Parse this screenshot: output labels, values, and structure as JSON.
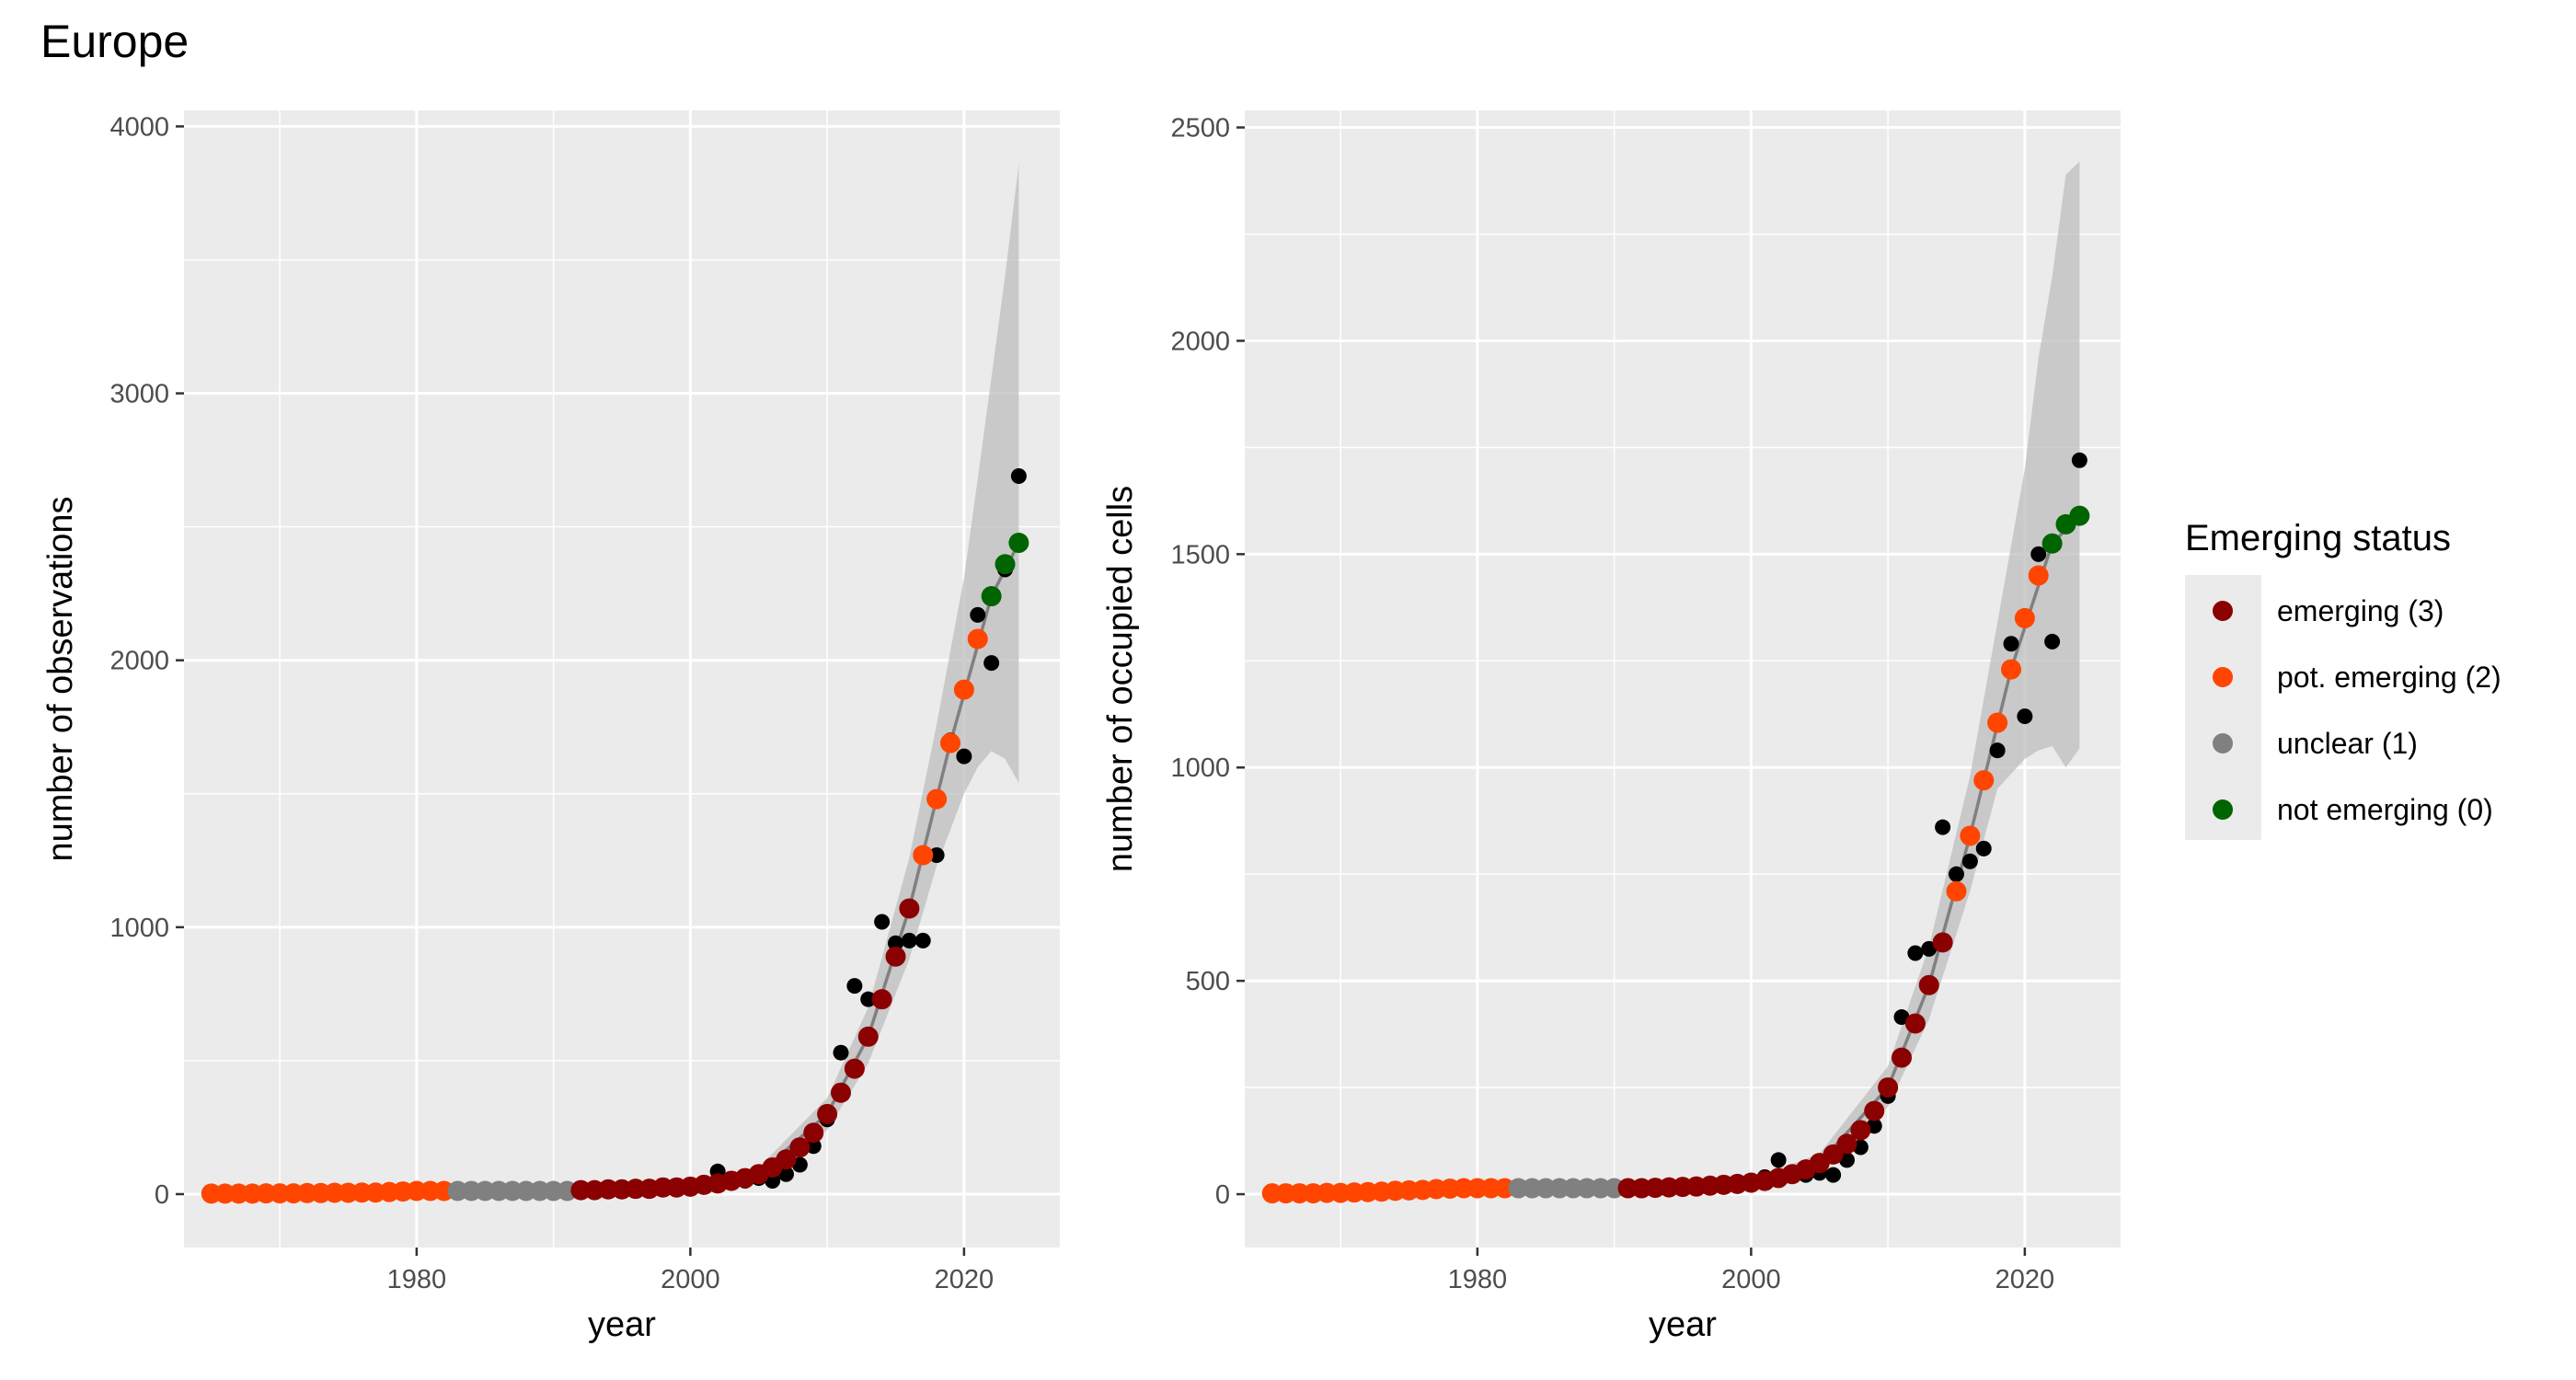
{
  "figure_title": "Europe",
  "legend": {
    "title": "Emerging status",
    "items": [
      {
        "label": "emerging (3)",
        "color": "#8B0000"
      },
      {
        "label": "pot. emerging (2)",
        "color": "#FF4500"
      },
      {
        "label": "unclear (1)",
        "color": "#808080"
      },
      {
        "label": "not emerging (0)",
        "color": "#006400"
      }
    ]
  },
  "chart_data": [
    {
      "type": "scatter",
      "title": "",
      "xlabel": "year",
      "ylabel": "number of observations",
      "xlim": [
        1963,
        2027
      ],
      "ylim": [
        -200,
        4060
      ],
      "x_ticks": [
        1980,
        2000,
        2020
      ],
      "y_ticks": [
        0,
        1000,
        2000,
        3000,
        4000
      ],
      "grid": true,
      "colors": {
        "observed": "#000000",
        "trend": "#808080",
        "ribbon": "#BEBEBE"
      },
      "observed": {
        "x": [
          1965,
          1966,
          1967,
          1968,
          1969,
          1970,
          1971,
          1972,
          1973,
          1974,
          1975,
          1976,
          1977,
          1978,
          1979,
          1980,
          1981,
          1982,
          1983,
          1984,
          1985,
          1986,
          1987,
          1988,
          1989,
          1990,
          1991,
          1992,
          1993,
          1994,
          1995,
          1996,
          1997,
          1998,
          1999,
          2000,
          2001,
          2002,
          2003,
          2004,
          2005,
          2006,
          2007,
          2008,
          2009,
          2010,
          2011,
          2012,
          2013,
          2014,
          2015,
          2016,
          2017,
          2018,
          2019,
          2020,
          2021,
          2022,
          2023,
          2024
        ],
        "y": [
          2,
          2,
          2,
          2,
          3,
          3,
          3,
          4,
          4,
          5,
          5,
          6,
          6,
          8,
          10,
          12,
          12,
          12,
          12,
          12,
          12,
          12,
          12,
          12,
          12,
          12,
          12,
          15,
          15,
          18,
          18,
          20,
          20,
          25,
          25,
          28,
          35,
          85,
          50,
          50,
          60,
          50,
          75,
          110,
          180,
          280,
          530,
          780,
          730,
          1020,
          940,
          950,
          950,
          1270,
          1700,
          1640,
          2170,
          1990,
          2340,
          2690
        ]
      },
      "emerging_status": {
        "x": [
          1965,
          1966,
          1967,
          1968,
          1969,
          1970,
          1971,
          1972,
          1973,
          1974,
          1975,
          1976,
          1977,
          1978,
          1979,
          1980,
          1981,
          1982,
          1983,
          1984,
          1985,
          1986,
          1987,
          1988,
          1989,
          1990,
          1991,
          1992,
          1993,
          1994,
          1995,
          1996,
          1997,
          1998,
          1999,
          2000,
          2001,
          2002,
          2003,
          2004,
          2005,
          2006,
          2007,
          2008,
          2009,
          2010,
          2011,
          2012,
          2013,
          2014,
          2015,
          2016,
          2017,
          2018,
          2019,
          2020,
          2021,
          2022,
          2023,
          2024
        ],
        "y": [
          2,
          2,
          2,
          2,
          3,
          3,
          3,
          4,
          4,
          5,
          5,
          6,
          6,
          8,
          10,
          12,
          12,
          12,
          12,
          12,
          12,
          12,
          12,
          12,
          12,
          12,
          12,
          15,
          15,
          18,
          18,
          20,
          20,
          25,
          25,
          28,
          35,
          40,
          50,
          60,
          75,
          100,
          130,
          175,
          230,
          300,
          380,
          470,
          590,
          730,
          890,
          1070,
          1270,
          1480,
          1690,
          1890,
          2080,
          2240,
          2360,
          2440
        ],
        "status": [
          2,
          2,
          2,
          2,
          2,
          2,
          2,
          2,
          2,
          2,
          2,
          2,
          2,
          2,
          2,
          2,
          2,
          2,
          1,
          1,
          1,
          1,
          1,
          1,
          1,
          1,
          1,
          3,
          3,
          3,
          3,
          3,
          3,
          3,
          3,
          3,
          3,
          3,
          3,
          3,
          3,
          3,
          3,
          3,
          3,
          3,
          3,
          3,
          3,
          3,
          3,
          3,
          2,
          2,
          2,
          2,
          2,
          0,
          0,
          0
        ]
      },
      "trend": {
        "x": [
          1995,
          2000,
          2005,
          2010,
          2013,
          2016,
          2019,
          2022,
          2024
        ],
        "y": [
          15,
          28,
          75,
          300,
          590,
          1070,
          1690,
          2240,
          2440
        ]
      },
      "ribbon": {
        "x": [
          1995,
          2000,
          2005,
          2010,
          2013,
          2016,
          2018,
          2020,
          2021,
          2022,
          2023,
          2024
        ],
        "lower": [
          10,
          20,
          55,
          240,
          490,
          880,
          1230,
          1500,
          1600,
          1660,
          1630,
          1540
        ],
        "upper": [
          20,
          36,
          100,
          360,
          700,
          1260,
          1760,
          2310,
          2680,
          3060,
          3440,
          3860
        ]
      }
    },
    {
      "type": "scatter",
      "title": "",
      "xlabel": "year",
      "ylabel": "number of occupied cells",
      "xlim": [
        1963,
        2027
      ],
      "ylim": [
        -125,
        2540
      ],
      "x_ticks": [
        1980,
        2000,
        2020
      ],
      "y_ticks": [
        0,
        500,
        1000,
        1500,
        2000,
        2500
      ],
      "grid": true,
      "colors": {
        "observed": "#000000",
        "trend": "#808080",
        "ribbon": "#BEBEBE"
      },
      "observed": {
        "x": [
          1965,
          1966,
          1967,
          1968,
          1969,
          1970,
          1971,
          1972,
          1973,
          1974,
          1975,
          1976,
          1977,
          1978,
          1979,
          1980,
          1981,
          1982,
          1983,
          1984,
          1985,
          1986,
          1987,
          1988,
          1989,
          1990,
          1991,
          1992,
          1993,
          1994,
          1995,
          1996,
          1997,
          1998,
          1999,
          2000,
          2001,
          2002,
          2003,
          2004,
          2005,
          2006,
          2007,
          2008,
          2009,
          2010,
          2011,
          2012,
          2013,
          2014,
          2015,
          2016,
          2017,
          2018,
          2019,
          2020,
          2021,
          2022,
          2023,
          2024
        ],
        "y": [
          2,
          2,
          2,
          2,
          3,
          3,
          4,
          5,
          6,
          8,
          9,
          10,
          12,
          15,
          18,
          15,
          12,
          12,
          12,
          12,
          12,
          12,
          12,
          12,
          12,
          12,
          12,
          12,
          14,
          16,
          18,
          20,
          20,
          22,
          20,
          25,
          40,
          80,
          45,
          45,
          50,
          45,
          80,
          110,
          160,
          230,
          415,
          565,
          575,
          860,
          750,
          780,
          810,
          1040,
          1290,
          1120,
          1500,
          1295,
          1565,
          1720
        ]
      },
      "emerging_status": {
        "x": [
          1965,
          1966,
          1967,
          1968,
          1969,
          1970,
          1971,
          1972,
          1973,
          1974,
          1975,
          1976,
          1977,
          1978,
          1979,
          1980,
          1981,
          1982,
          1983,
          1984,
          1985,
          1986,
          1987,
          1988,
          1989,
          1990,
          1991,
          1992,
          1993,
          1994,
          1995,
          1996,
          1997,
          1998,
          1999,
          2000,
          2001,
          2002,
          2003,
          2004,
          2005,
          2006,
          2007,
          2008,
          2009,
          2010,
          2011,
          2012,
          2013,
          2014,
          2015,
          2016,
          2017,
          2018,
          2019,
          2020,
          2021,
          2022,
          2023,
          2024
        ],
        "y": [
          2,
          2,
          2,
          2,
          3,
          3,
          4,
          5,
          6,
          8,
          9,
          10,
          12,
          13,
          14,
          14,
          14,
          14,
          14,
          14,
          14,
          14,
          14,
          14,
          14,
          14,
          14,
          14,
          15,
          16,
          17,
          18,
          20,
          22,
          24,
          27,
          31,
          38,
          47,
          58,
          73,
          93,
          118,
          150,
          195,
          250,
          320,
          400,
          490,
          590,
          710,
          840,
          970,
          1105,
          1230,
          1350,
          1450,
          1525,
          1570,
          1590
        ],
        "status": [
          2,
          2,
          2,
          2,
          2,
          2,
          2,
          2,
          2,
          2,
          2,
          2,
          2,
          2,
          2,
          2,
          2,
          2,
          1,
          1,
          1,
          1,
          1,
          1,
          1,
          1,
          3,
          3,
          3,
          3,
          3,
          3,
          3,
          3,
          3,
          3,
          3,
          3,
          3,
          3,
          3,
          3,
          3,
          3,
          3,
          3,
          3,
          3,
          3,
          3,
          2,
          2,
          2,
          2,
          2,
          2,
          2,
          0,
          0,
          0
        ]
      },
      "trend": {
        "x": [
          1995,
          2000,
          2005,
          2010,
          2013,
          2016,
          2019,
          2022,
          2024
        ],
        "y": [
          17,
          27,
          73,
          250,
          490,
          840,
          1230,
          1525,
          1590
        ]
      },
      "ribbon": {
        "x": [
          1995,
          2000,
          2005,
          2010,
          2013,
          2016,
          2018,
          2020,
          2021,
          2022,
          2023,
          2024
        ],
        "lower": [
          12,
          20,
          55,
          205,
          410,
          710,
          950,
          1020,
          1040,
          1050,
          1000,
          1045
        ],
        "upper": [
          22,
          34,
          95,
          300,
          580,
          980,
          1340,
          1700,
          1960,
          2150,
          2390,
          2420
        ]
      }
    }
  ]
}
